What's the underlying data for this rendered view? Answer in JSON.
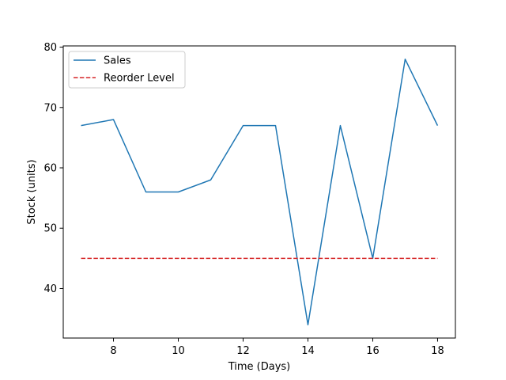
{
  "chart_data": {
    "type": "line",
    "xlabel": "Time (Days)",
    "ylabel": "Stock (units)",
    "xlim": [
      6.45,
      18.55
    ],
    "ylim": [
      31.8,
      80.2
    ],
    "x_ticks": [
      8,
      10,
      12,
      14,
      16,
      18
    ],
    "y_ticks": [
      40,
      50,
      60,
      70,
      80
    ],
    "grid": false,
    "legend_position": "upper-left",
    "series": [
      {
        "name": "Sales",
        "color": "#1f77b4",
        "style": "solid",
        "x": [
          7,
          8,
          9,
          10,
          11,
          12,
          13,
          14,
          15,
          16,
          17,
          18
        ],
        "y": [
          67,
          68,
          56,
          56,
          58,
          67,
          67,
          34,
          67,
          45,
          78,
          67
        ]
      },
      {
        "name": "Reorder Level",
        "color": "#d62728",
        "style": "dashed",
        "x": [
          7,
          18
        ],
        "y": [
          45,
          45
        ]
      }
    ]
  }
}
